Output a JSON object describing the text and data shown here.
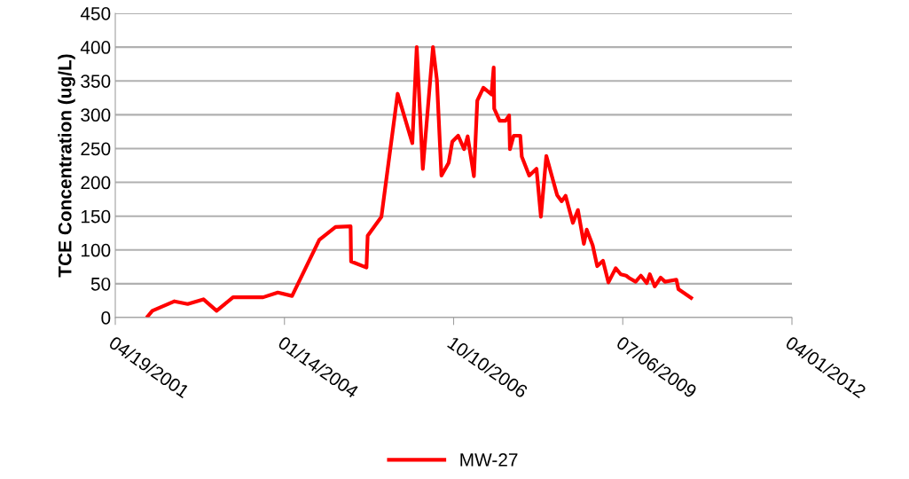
{
  "chart_data": {
    "type": "line",
    "ylabel": "TCE Concentration (ug/L)",
    "x": [
      "2001-10-28",
      "2001-11-24",
      "2002-04-04",
      "2002-06-21",
      "2002-09-22",
      "2002-12-09",
      "2003-03-16",
      "2003-09-10",
      "2003-12-06",
      "2004-02-28",
      "2004-08-07",
      "2004-11-11",
      "2005-02-08",
      "2005-02-11",
      "2005-05-13",
      "2005-05-20",
      "2005-08-09",
      "2005-11-13",
      "2006-02-08",
      "2006-03-06",
      "2006-04-11",
      "2006-06-10",
      "2006-07-03",
      "2006-07-30",
      "2006-09-11",
      "2006-10-02",
      "2006-11-06",
      "2006-12-11",
      "2007-01-01",
      "2007-02-07",
      "2007-02-27",
      "2007-04-04",
      "2007-05-22",
      "2007-06-04",
      "2007-06-07",
      "2007-07-09",
      "2007-08-13",
      "2007-09-03",
      "2007-09-08",
      "2007-09-30",
      "2007-11-08",
      "2007-11-17",
      "2007-12-31",
      "2008-02-12",
      "2008-03-09",
      "2008-04-10",
      "2008-06-13",
      "2008-07-10",
      "2008-08-02",
      "2008-09-14",
      "2008-10-14",
      "2008-11-18",
      "2008-12-05",
      "2009-01-09",
      "2009-02-05",
      "2009-03-11",
      "2009-04-12",
      "2009-05-25",
      "2009-06-24",
      "2009-07-26",
      "2009-08-16",
      "2009-09-20",
      "2009-10-21",
      "2009-11-25",
      "2009-12-13",
      "2010-01-11",
      "2010-02-15",
      "2010-03-13",
      "2010-05-19",
      "2010-05-31",
      "2010-08-14"
    ],
    "series": [
      {
        "name": "MW-27",
        "color": "#ff0000",
        "values": [
          2,
          10,
          24,
          20,
          27,
          10,
          30,
          30,
          37,
          32,
          115,
          134,
          135,
          83,
          74,
          121,
          149,
          331,
          258,
          400,
          220,
          400,
          352,
          210,
          229,
          260,
          269,
          249,
          268,
          209,
          321,
          340,
          330,
          370,
          309,
          291,
          291,
          299,
          249,
          269,
          269,
          238,
          210,
          220,
          149,
          239,
          181,
          172,
          180,
          140,
          159,
          109,
          130,
          107,
          76,
          84,
          52,
          73,
          64,
          62,
          58,
          53,
          62,
          51,
          64,
          46,
          59,
          53,
          56,
          42,
          29
        ]
      }
    ],
    "xlim": [
      "2001-04-19",
      "2012-04-01"
    ],
    "xticks": [
      {
        "value": "2001-04-19",
        "label": "04/19/2001"
      },
      {
        "value": "2004-01-14",
        "label": "01/14/2004"
      },
      {
        "value": "2006-10-10",
        "label": "10/10/2006"
      },
      {
        "value": "2009-07-06",
        "label": "07/06/2009"
      },
      {
        "value": "2012-04-01",
        "label": "04/01/2012"
      }
    ],
    "ylim": [
      0,
      450
    ],
    "yticks": [
      0,
      50,
      100,
      150,
      200,
      250,
      300,
      350,
      400,
      450
    ],
    "grid": "y",
    "legend": "bottom",
    "marker": "none",
    "line_style": "solid"
  }
}
